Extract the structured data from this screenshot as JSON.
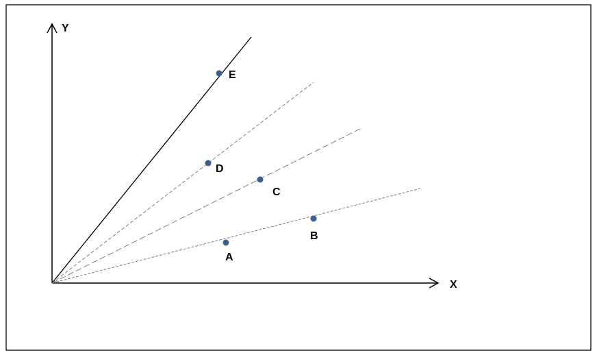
{
  "axes": {
    "x_label": "X",
    "y_label": "Y"
  },
  "points": [
    {
      "id": "A",
      "label": "A"
    },
    {
      "id": "B",
      "label": "B"
    },
    {
      "id": "C",
      "label": "C"
    },
    {
      "id": "D",
      "label": "D"
    },
    {
      "id": "E",
      "label": "E"
    }
  ],
  "colors": {
    "point": "#3b5f8f",
    "solid_line": "#000000",
    "dashed_line": "#7f7f7f",
    "border": "#000000"
  }
}
